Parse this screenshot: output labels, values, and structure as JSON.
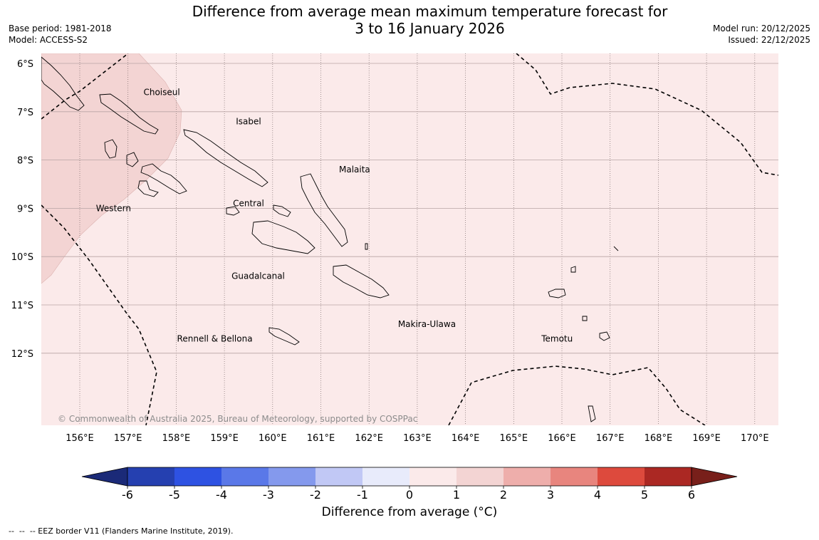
{
  "title_line1": "Difference from average mean maximum temperature forecast for",
  "title_line2": "3 to 16 January 2026",
  "base_period": "Base period: 1981-2018",
  "model": "Model: ACCESS-S2",
  "model_run": "Model run: 20/12/2025",
  "issued": "Issued: 22/12/2025",
  "copyright": "© Commonwealth of Australia 2025, Bureau of Meteorology, supported by COSPPac",
  "footnote": "--  --  -- EEZ border V11 (Flanders Marine Institute, 2019).",
  "map": {
    "lon_labels": [
      "156°E",
      "157°E",
      "158°E",
      "159°E",
      "160°E",
      "161°E",
      "162°E",
      "163°E",
      "164°E",
      "165°E",
      "166°E",
      "167°E",
      "168°E",
      "169°E",
      "170°E"
    ],
    "lat_labels": [
      "6°S",
      "7°S",
      "8°S",
      "9°S",
      "10°S",
      "11°S",
      "12°S"
    ],
    "province_labels": [
      {
        "name": "Choiseul",
        "lon": 157.7,
        "lat": -6.6
      },
      {
        "name": "Isabel",
        "lon": 159.5,
        "lat": -7.2
      },
      {
        "name": "Malaita",
        "lon": 161.7,
        "lat": -8.2
      },
      {
        "name": "Western",
        "lon": 156.7,
        "lat": -9.0
      },
      {
        "name": "Central",
        "lon": 159.5,
        "lat": -8.9
      },
      {
        "name": "Guadalcanal",
        "lon": 159.7,
        "lat": -10.4
      },
      {
        "name": "Makira-Ulawa",
        "lon": 163.2,
        "lat": -11.4
      },
      {
        "name": "Temotu",
        "lon": 165.9,
        "lat": -11.7
      },
      {
        "name": "Rennell & Bellona",
        "lon": 158.8,
        "lat": -11.7
      }
    ],
    "background_anomaly_class": "0 to 1",
    "western_anomaly_class": "1 to 2"
  },
  "colorbar": {
    "title": "Difference from average (°C)",
    "ticks": [
      "-6",
      "-5",
      "-4",
      "-3",
      "-2",
      "-1",
      "0",
      "1",
      "2",
      "3",
      "4",
      "5",
      "6"
    ],
    "colors": [
      "#1b2a78",
      "#2540b0",
      "#2e52e2",
      "#5a78e8",
      "#8499ed",
      "#c1c8f5",
      "#e8ebfb",
      "#fbeaea",
      "#f3d4d3",
      "#eeaeab",
      "#e8857e",
      "#dd4a3d",
      "#ab2823",
      "#781f1a"
    ]
  }
}
